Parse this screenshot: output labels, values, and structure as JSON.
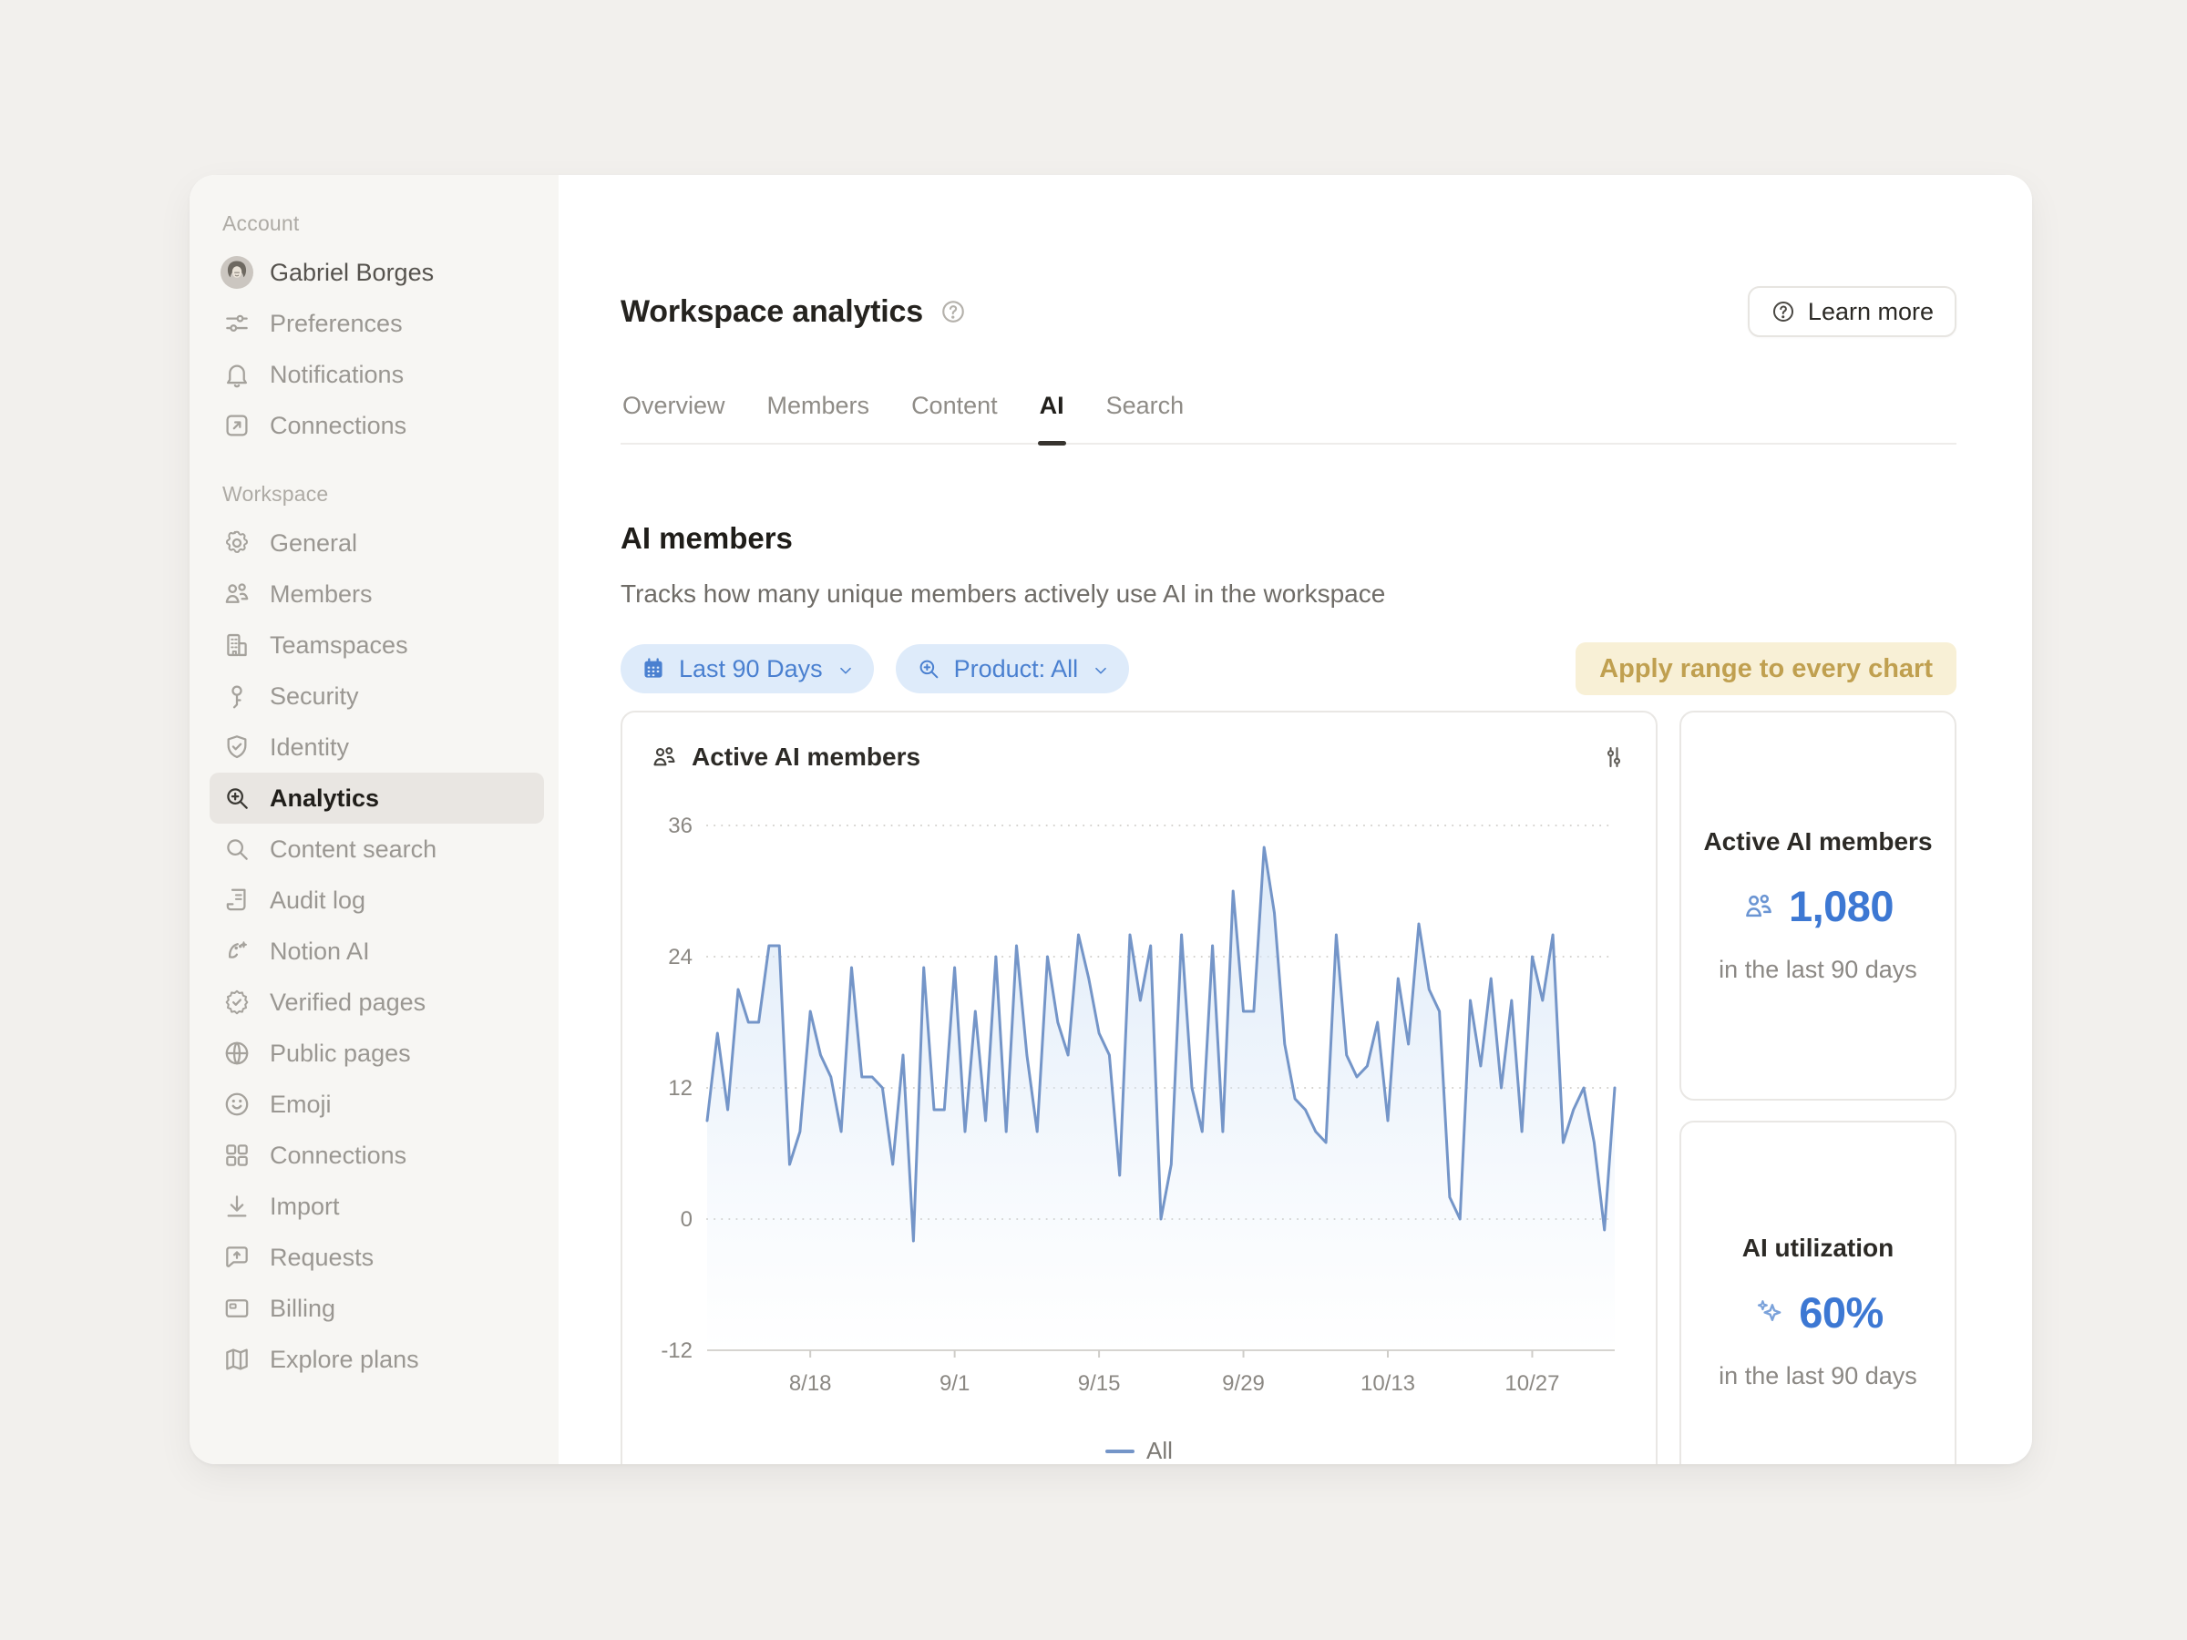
{
  "sidebar": {
    "account_label": "Account",
    "account_items": [
      {
        "label": "Gabriel Borges",
        "icon": "avatar",
        "user": true
      },
      {
        "label": "Preferences",
        "icon": "sliders-horizontal"
      },
      {
        "label": "Notifications",
        "icon": "bell"
      },
      {
        "label": "Connections",
        "icon": "arrow-up-right-box"
      }
    ],
    "workspace_label": "Workspace",
    "workspace_items": [
      {
        "label": "General",
        "icon": "gear"
      },
      {
        "label": "Members",
        "icon": "people"
      },
      {
        "label": "Teamspaces",
        "icon": "building"
      },
      {
        "label": "Security",
        "icon": "key"
      },
      {
        "label": "Identity",
        "icon": "shield-check"
      },
      {
        "label": "Analytics",
        "icon": "magnifier-plus",
        "selected": true
      },
      {
        "label": "Content search",
        "icon": "magnifier"
      },
      {
        "label": "Audit log",
        "icon": "audit-scroll"
      },
      {
        "label": "Notion AI",
        "icon": "notion-ai-face"
      },
      {
        "label": "Verified pages",
        "icon": "badge-check"
      },
      {
        "label": "Public pages",
        "icon": "globe"
      },
      {
        "label": "Emoji",
        "icon": "smiley"
      },
      {
        "label": "Connections",
        "icon": "grid"
      },
      {
        "label": "Import",
        "icon": "download"
      },
      {
        "label": "Requests",
        "icon": "chat-up"
      },
      {
        "label": "Billing",
        "icon": "credit-card"
      },
      {
        "label": "Explore plans",
        "icon": "map"
      }
    ]
  },
  "header": {
    "title": "Workspace analytics",
    "learn_more_label": "Learn more"
  },
  "tabs": [
    {
      "label": "Overview"
    },
    {
      "label": "Members"
    },
    {
      "label": "Content"
    },
    {
      "label": "AI",
      "active": true
    },
    {
      "label": "Search"
    }
  ],
  "section": {
    "title": "AI members",
    "description": "Tracks how many unique members actively use AI in the workspace",
    "filters": [
      {
        "label": "Last 90 Days",
        "icon": "calendar"
      },
      {
        "label": "Product: All",
        "icon": "magnifier-plus"
      }
    ],
    "apply_range_label": "Apply range to every chart"
  },
  "chart_data": {
    "type": "line",
    "title": "Active AI members",
    "series": [
      {
        "name": "All",
        "values": [
          9,
          17,
          10,
          21,
          18,
          18,
          25,
          25,
          5,
          8,
          19,
          15,
          13,
          8,
          23,
          13,
          13,
          12,
          5,
          15,
          -2,
          23,
          10,
          10,
          23,
          8,
          19,
          9,
          24,
          8,
          25,
          15,
          8,
          24,
          18,
          15,
          26,
          22,
          17,
          15,
          4,
          26,
          20,
          25,
          0,
          5,
          26,
          12,
          8,
          25,
          8,
          30,
          19,
          19,
          34,
          28,
          16,
          11,
          10,
          8,
          7,
          26,
          15,
          13,
          14,
          18,
          9,
          22,
          16,
          27,
          21,
          19,
          2,
          0,
          20,
          14,
          22,
          12,
          20,
          8,
          24,
          20,
          26,
          7,
          10,
          12,
          7,
          -1,
          12
        ]
      }
    ],
    "x_tick_labels": [
      "8/18",
      "9/1",
      "9/15",
      "9/29",
      "10/13",
      "10/27"
    ],
    "x_tick_day_index": [
      10,
      24,
      38,
      52,
      66,
      80
    ],
    "y_ticks": [
      36,
      24,
      12,
      0,
      -12
    ],
    "ylim": [
      -12,
      36
    ],
    "grid": "dotted-horizontal",
    "legend_position": "bottom",
    "line_color": "#7495c8",
    "fill_color": "#d7e6f7"
  },
  "stat_cards": [
    {
      "title": "Active AI members",
      "icon": "people",
      "value": "1,080",
      "subtitle": "in the last 90 days"
    },
    {
      "title": "AI utilization",
      "icon": "sparkles",
      "value": "60%",
      "subtitle": "in the last 90 days"
    }
  ],
  "colors": {
    "accent_blue": "#4a80d0",
    "stat_blue": "#3d78d3",
    "chip_bg": "#deebfa",
    "apply_bg": "#f8f0d6",
    "apply_text": "#c0a050",
    "sidebar_bg": "#f7f6f3",
    "selected_bg": "#e9e6e2"
  }
}
